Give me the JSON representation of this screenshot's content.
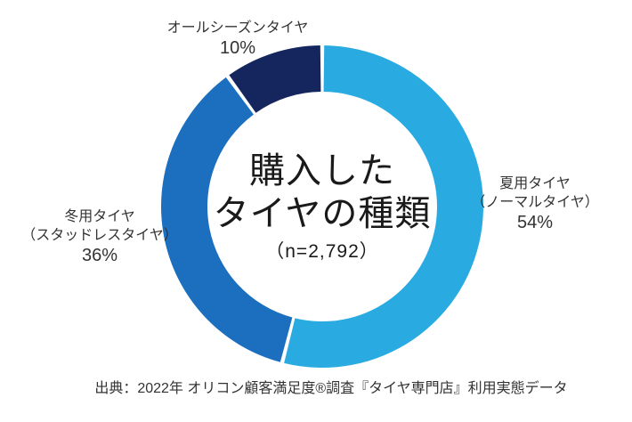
{
  "chart_data": {
    "type": "pie",
    "variant": "donut",
    "title_lines": [
      "購入した",
      "タイヤの種類"
    ],
    "sample_size_label": "（n=2,792）",
    "unit": "%",
    "direction": "clockwise",
    "start_angle_deg": 0,
    "separator_color": "#FFFFFF",
    "slices": [
      {
        "category": "夏用タイヤ",
        "sublabel": "（ノーマルタイヤ）",
        "value": 54,
        "percent_label": "54%",
        "color": "#29ABE2"
      },
      {
        "category": "冬用タイヤ",
        "sublabel": "（スタッドレスタイヤ）",
        "value": 36,
        "percent_label": "36%",
        "color": "#1C6FBF"
      },
      {
        "category": "オールシーズンタイヤ",
        "sublabel": "",
        "value": 10,
        "percent_label": "10%",
        "color": "#15265F"
      }
    ],
    "legend_position": "outside-labels",
    "source": "出典：2022年 オリコン顧客満足度®調査『タイヤ専門店』利用実態データ"
  }
}
